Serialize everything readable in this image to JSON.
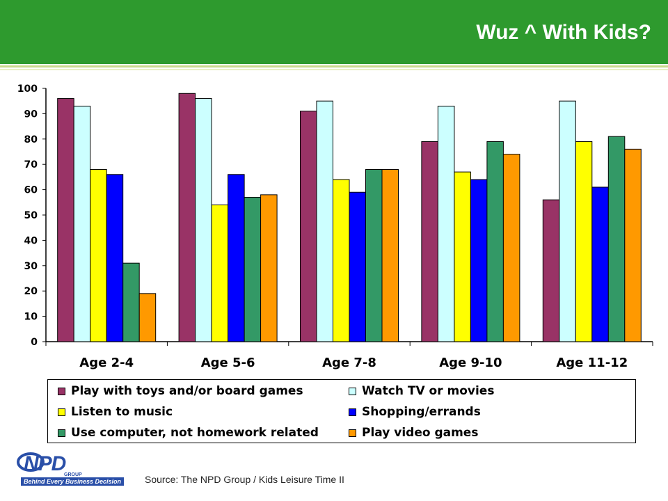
{
  "header": {
    "title": "Wuz ^ With Kids?"
  },
  "chart_data": {
    "type": "bar",
    "categories": [
      "Age 2-4",
      "Age 5-6",
      "Age 7-8",
      "Age 9-10",
      "Age 11-12"
    ],
    "ylim": [
      0,
      100
    ],
    "yticks": [
      "0",
      "10",
      "20",
      "30",
      "40",
      "50",
      "60",
      "70",
      "80",
      "90",
      "100"
    ],
    "grid": false,
    "legend_position": "bottom",
    "series": [
      {
        "name": "Play with toys and/or board games",
        "color": "#993366",
        "values": [
          96,
          98,
          91,
          79,
          56
        ]
      },
      {
        "name": "Watch TV or movies",
        "color": "#ccffff",
        "values": [
          93,
          96,
          95,
          93,
          95
        ]
      },
      {
        "name": "Listen to music",
        "color": "#ffff00",
        "values": [
          68,
          54,
          64,
          67,
          79
        ]
      },
      {
        "name": "Shopping/errands",
        "color": "#0000ff",
        "values": [
          66,
          66,
          59,
          64,
          61
        ]
      },
      {
        "name": "Use computer, not homework related",
        "color": "#339966",
        "values": [
          31,
          57,
          68,
          79,
          81
        ]
      },
      {
        "name": "Play video games",
        "color": "#ff9900",
        "values": [
          19,
          58,
          68,
          74,
          76
        ]
      }
    ]
  },
  "footer": {
    "logo_text": "NPD",
    "logo_group": "GROUP",
    "logo_tagline": "Behind Every Business Decision",
    "source": "Source:  The NPD Group / Kids Leisure Time II"
  }
}
